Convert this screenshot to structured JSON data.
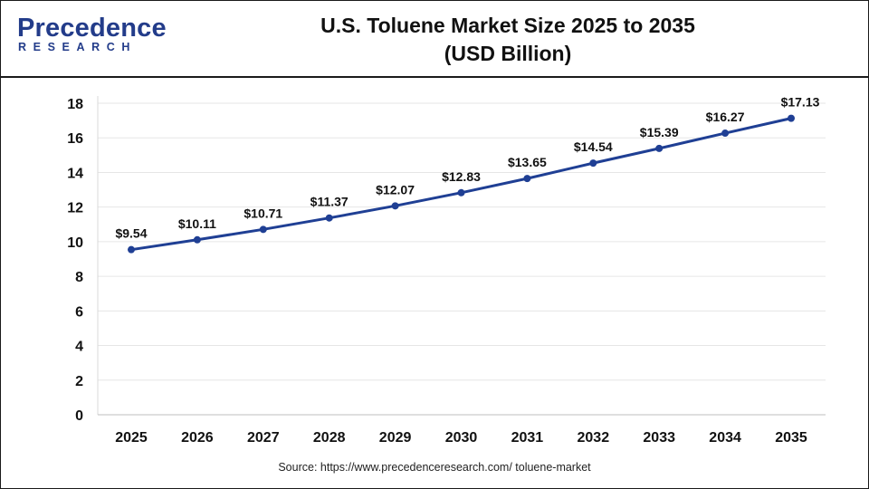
{
  "header": {
    "logo_main": "Precedence",
    "logo_sub": "RESEARCH",
    "title_line1": "U.S. Toluene Market Size 2025 to 2035",
    "title_line2": "(USD Billion)"
  },
  "source": "Source: https://www.precedenceresearch.com/ toluene-market",
  "colors": {
    "line": "#1f3f94",
    "grid": "#e6e6e6",
    "text": "#111111"
  },
  "chart_data": {
    "type": "line",
    "title": "U.S. Toluene Market Size 2025 to 2035 (USD Billion)",
    "categories": [
      "2025",
      "2026",
      "2027",
      "2028",
      "2029",
      "2030",
      "2031",
      "2032",
      "2033",
      "2034",
      "2035"
    ],
    "values": [
      9.54,
      10.11,
      10.71,
      11.37,
      12.07,
      12.83,
      13.65,
      14.54,
      15.39,
      16.27,
      17.13
    ],
    "data_labels": [
      "$9.54",
      "$10.11",
      "$10.71",
      "$11.37",
      "$12.07",
      "$12.83",
      "$13.65",
      "$14.54",
      "$15.39",
      "$16.27",
      "$17.13"
    ],
    "y_ticks": [
      0,
      2,
      4,
      6,
      8,
      10,
      12,
      14,
      16,
      18
    ],
    "ylim": [
      0,
      18
    ],
    "grid": true,
    "legend": "none"
  }
}
